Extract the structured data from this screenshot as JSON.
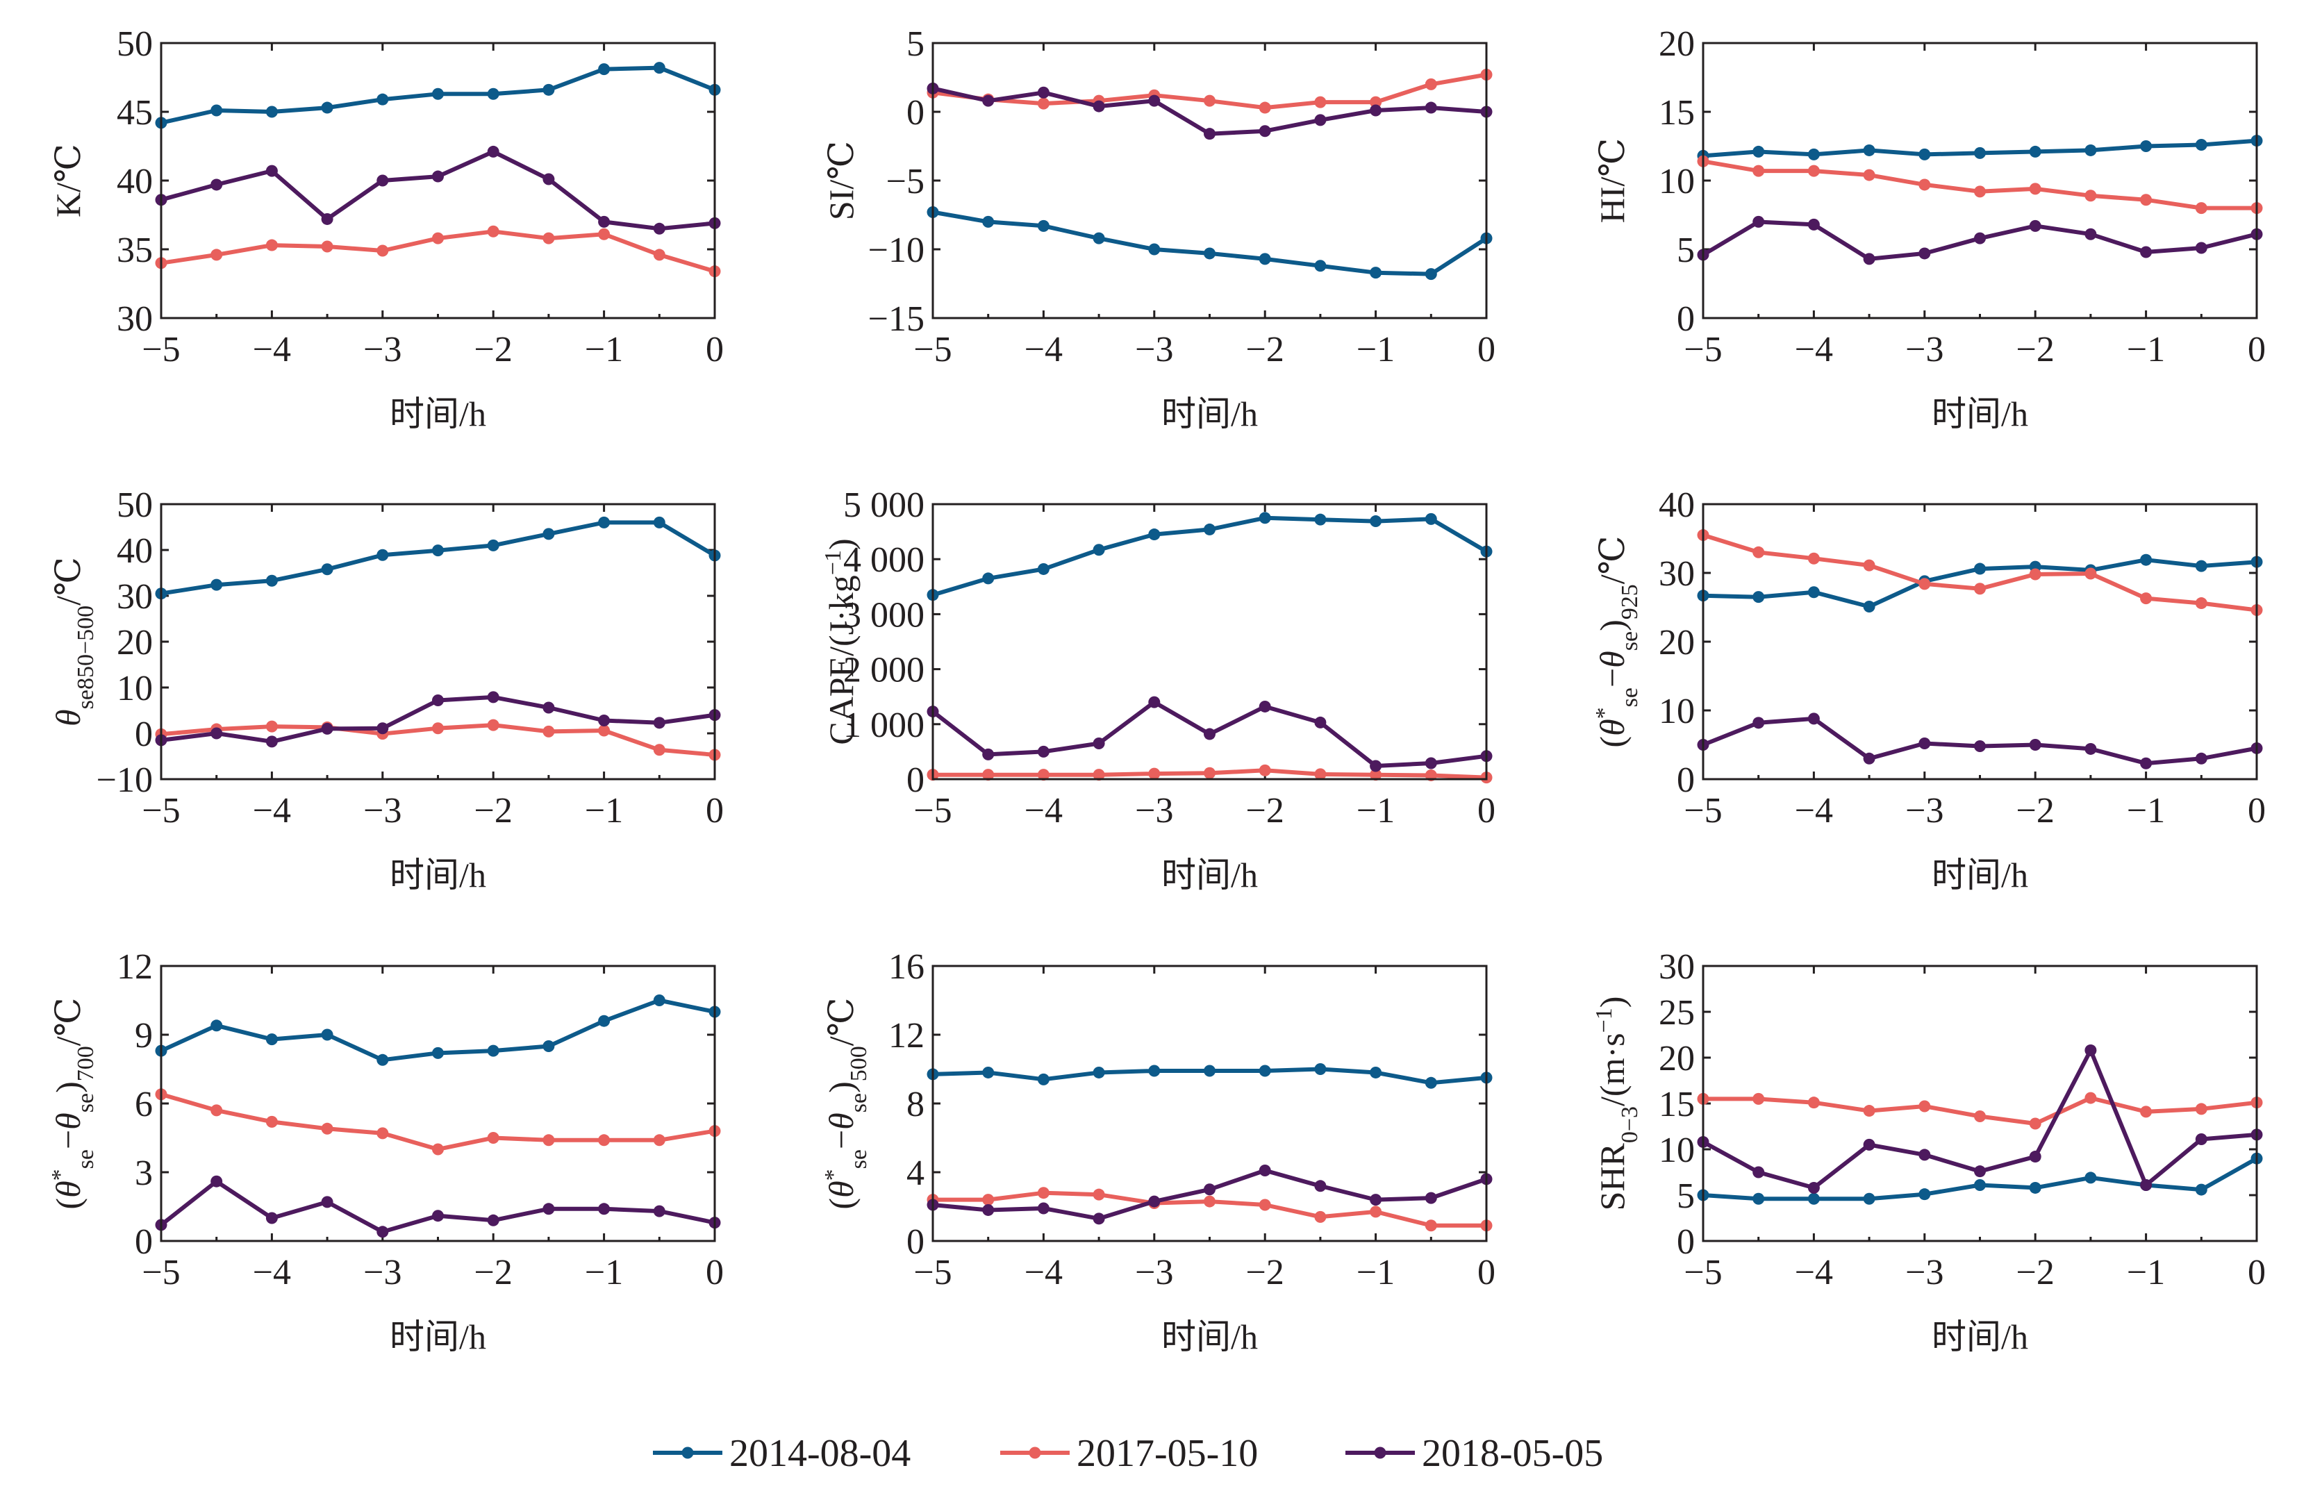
{
  "series_meta": [
    {
      "name": "2014-08-04",
      "color": "#0d5a8a"
    },
    {
      "name": "2017-05-10",
      "color": "#e8605c"
    },
    {
      "name": "2018-05-05",
      "color": "#4d1a5e"
    }
  ],
  "chart_data": [
    {
      "type": "line",
      "xlabel": "时间/h",
      "ylabel": "K/℃",
      "xlim": [
        -5,
        0
      ],
      "ylim": [
        30,
        50
      ],
      "xticks": [
        "−5",
        "−4",
        "−3",
        "−2",
        "−1",
        "0"
      ],
      "yticks": [
        "30",
        "35",
        "40",
        "45",
        "50"
      ],
      "x": [
        -5,
        -4.5,
        -4,
        -3.5,
        -3,
        -2.5,
        -2,
        -1.5,
        -1,
        -0.5,
        0
      ],
      "series": [
        {
          "name": "2014-08-04",
          "values": [
            44.2,
            45.1,
            45.0,
            45.3,
            45.9,
            46.3,
            46.3,
            46.6,
            48.1,
            48.2,
            46.6
          ]
        },
        {
          "name": "2017-05-10",
          "values": [
            34.0,
            34.6,
            35.3,
            35.2,
            34.9,
            35.8,
            36.3,
            35.8,
            36.1,
            34.6,
            33.4
          ]
        },
        {
          "name": "2018-05-05",
          "values": [
            38.6,
            39.7,
            40.7,
            37.2,
            40.0,
            40.3,
            42.1,
            40.1,
            37.0,
            36.5,
            36.9
          ]
        }
      ]
    },
    {
      "type": "line",
      "xlabel": "时间/h",
      "ylabel": "SI/℃",
      "xlim": [
        -5,
        0
      ],
      "ylim": [
        -15,
        5
      ],
      "xticks": [
        "−5",
        "−4",
        "−3",
        "−2",
        "−1",
        "0"
      ],
      "yticks": [
        "−15",
        "−10",
        "−5",
        "0",
        "5"
      ],
      "x": [
        -5,
        -4.5,
        -4,
        -3.5,
        -3,
        -2.5,
        -2,
        -1.5,
        -1,
        -0.5,
        0
      ],
      "series": [
        {
          "name": "2014-08-04",
          "values": [
            -7.3,
            -8.0,
            -8.3,
            -9.2,
            -10.0,
            -10.3,
            -10.7,
            -11.2,
            -11.7,
            -11.8,
            -9.2
          ]
        },
        {
          "name": "2017-05-10",
          "values": [
            1.4,
            0.9,
            0.6,
            0.8,
            1.2,
            0.8,
            0.3,
            0.7,
            0.7,
            2.0,
            2.7
          ]
        },
        {
          "name": "2018-05-05",
          "values": [
            1.7,
            0.8,
            1.4,
            0.4,
            0.8,
            -1.6,
            -1.4,
            -0.6,
            0.1,
            0.3,
            0.0
          ]
        }
      ]
    },
    {
      "type": "line",
      "xlabel": "时间/h",
      "ylabel": "HI/℃",
      "xlim": [
        -5,
        0
      ],
      "ylim": [
        0,
        20
      ],
      "xticks": [
        "−5",
        "−4",
        "−3",
        "−2",
        "−1",
        "0"
      ],
      "yticks": [
        "0",
        "5",
        "10",
        "15",
        "20"
      ],
      "x": [
        -5,
        -4.5,
        -4,
        -3.5,
        -3,
        -2.5,
        -2,
        -1.5,
        -1,
        -0.5,
        0
      ],
      "series": [
        {
          "name": "2014-08-04",
          "values": [
            11.8,
            12.1,
            11.9,
            12.2,
            11.9,
            12.0,
            12.1,
            12.2,
            12.5,
            12.6,
            12.9
          ]
        },
        {
          "name": "2017-05-10",
          "values": [
            11.4,
            10.7,
            10.7,
            10.4,
            9.7,
            9.2,
            9.4,
            8.9,
            8.6,
            8.0,
            8.0
          ]
        },
        {
          "name": "2018-05-05",
          "values": [
            4.6,
            7.0,
            6.8,
            4.3,
            4.7,
            5.8,
            6.7,
            6.1,
            4.8,
            5.1,
            6.1
          ]
        }
      ]
    },
    {
      "type": "line",
      "xlabel": "时间/h",
      "ylabel": "θse850−500/℃",
      "xlim": [
        -5,
        0
      ],
      "ylim": [
        -10,
        50
      ],
      "xticks": [
        "−5",
        "−4",
        "−3",
        "−2",
        "−1",
        "0"
      ],
      "yticks": [
        "−10",
        "0",
        "10",
        "20",
        "30",
        "40",
        "50"
      ],
      "x": [
        -5,
        -4.5,
        -4,
        -3.5,
        -3,
        -2.5,
        -2,
        -1.5,
        -1,
        -0.5,
        0
      ],
      "series": [
        {
          "name": "2014-08-04",
          "values": [
            30.5,
            32.4,
            33.3,
            35.8,
            38.9,
            39.9,
            41.0,
            43.5,
            46.0,
            46.0,
            38.8
          ]
        },
        {
          "name": "2017-05-10",
          "values": [
            -0.2,
            0.9,
            1.5,
            1.3,
            -0.1,
            1.1,
            1.8,
            0.4,
            0.6,
            -3.6,
            -4.7
          ]
        },
        {
          "name": "2018-05-05",
          "values": [
            -1.5,
            0.0,
            -1.8,
            1.0,
            1.1,
            7.2,
            7.9,
            5.6,
            2.8,
            2.3,
            4.0
          ]
        }
      ]
    },
    {
      "type": "line",
      "xlabel": "时间/h",
      "ylabel": "CAPE/(J·kg⁻¹)",
      "xlim": [
        -5,
        0
      ],
      "ylim": [
        0,
        5000
      ],
      "xticks": [
        "−5",
        "−4",
        "−3",
        "−2",
        "−1",
        "0"
      ],
      "yticks": [
        "0",
        "1 000",
        "2 000",
        "3 000",
        "4 000",
        "5 000"
      ],
      "x": [
        -5,
        -4.5,
        -4,
        -3.5,
        -3,
        -2.5,
        -2,
        -1.5,
        -1,
        -0.5,
        0
      ],
      "series": [
        {
          "name": "2014-08-04",
          "values": [
            3350,
            3650,
            3820,
            4170,
            4450,
            4540,
            4750,
            4720,
            4690,
            4730,
            4140
          ]
        },
        {
          "name": "2017-05-10",
          "values": [
            80,
            80,
            80,
            80,
            100,
            110,
            160,
            90,
            80,
            70,
            30
          ]
        },
        {
          "name": "2018-05-05",
          "values": [
            1230,
            450,
            500,
            650,
            1400,
            820,
            1320,
            1030,
            240,
            290,
            420
          ]
        }
      ]
    },
    {
      "type": "line",
      "xlabel": "时间/h",
      "ylabel": "(θ*se−θse)925/℃",
      "xlim": [
        -5,
        0
      ],
      "ylim": [
        0,
        40
      ],
      "xticks": [
        "−5",
        "−4",
        "−3",
        "−2",
        "−1",
        "0"
      ],
      "yticks": [
        "0",
        "10",
        "20",
        "30",
        "40"
      ],
      "x": [
        -5,
        -4.5,
        -4,
        -3.5,
        -3,
        -2.5,
        -2,
        -1.5,
        -1,
        -0.5,
        0
      ],
      "series": [
        {
          "name": "2014-08-04",
          "values": [
            26.7,
            26.5,
            27.2,
            25.1,
            28.8,
            30.6,
            30.9,
            30.4,
            31.9,
            31.0,
            31.6
          ]
        },
        {
          "name": "2017-05-10",
          "values": [
            35.5,
            33.0,
            32.1,
            31.1,
            28.4,
            27.7,
            29.8,
            29.9,
            26.3,
            25.6,
            24.6
          ]
        },
        {
          "name": "2018-05-05",
          "values": [
            5.0,
            8.2,
            8.8,
            3.0,
            5.2,
            4.8,
            5.0,
            4.4,
            2.3,
            3.0,
            4.5
          ]
        }
      ]
    },
    {
      "type": "line",
      "xlabel": "时间/h",
      "ylabel": "(θ*se−θse)700/℃",
      "xlim": [
        -5,
        0
      ],
      "ylim": [
        0,
        12
      ],
      "xticks": [
        "−5",
        "−4",
        "−3",
        "−2",
        "−1",
        "0"
      ],
      "yticks": [
        "0",
        "3",
        "6",
        "9",
        "12"
      ],
      "x": [
        -5,
        -4.5,
        -4,
        -3.5,
        -3,
        -2.5,
        -2,
        -1.5,
        -1,
        -0.5,
        0
      ],
      "series": [
        {
          "name": "2014-08-04",
          "values": [
            8.3,
            9.4,
            8.8,
            9.0,
            7.9,
            8.2,
            8.3,
            8.5,
            9.6,
            10.5,
            10.0
          ]
        },
        {
          "name": "2017-05-10",
          "values": [
            6.4,
            5.7,
            5.2,
            4.9,
            4.7,
            4.0,
            4.5,
            4.4,
            4.4,
            4.4,
            4.8
          ]
        },
        {
          "name": "2018-05-05",
          "values": [
            0.7,
            2.6,
            1.0,
            1.7,
            0.4,
            1.1,
            0.9,
            1.4,
            1.4,
            1.3,
            0.8
          ]
        }
      ]
    },
    {
      "type": "line",
      "xlabel": "时间/h",
      "ylabel": "(θ*se−θse)500/℃",
      "xlim": [
        -5,
        0
      ],
      "ylim": [
        0,
        16
      ],
      "xticks": [
        "−5",
        "−4",
        "−3",
        "−2",
        "−1",
        "0"
      ],
      "yticks": [
        "0",
        "4",
        "8",
        "12",
        "16"
      ],
      "x": [
        -5,
        -4.5,
        -4,
        -3.5,
        -3,
        -2.5,
        -2,
        -1.5,
        -1,
        -0.5,
        0
      ],
      "series": [
        {
          "name": "2014-08-04",
          "values": [
            9.7,
            9.8,
            9.4,
            9.8,
            9.9,
            9.9,
            9.9,
            10.0,
            9.8,
            9.2,
            9.5
          ]
        },
        {
          "name": "2017-05-10",
          "values": [
            2.4,
            2.4,
            2.8,
            2.7,
            2.2,
            2.3,
            2.1,
            1.4,
            1.7,
            0.9,
            0.9
          ]
        },
        {
          "name": "2018-05-05",
          "values": [
            2.1,
            1.8,
            1.9,
            1.3,
            2.3,
            3.0,
            4.1,
            3.2,
            2.4,
            2.5,
            3.6
          ]
        }
      ]
    },
    {
      "type": "line",
      "xlabel": "时间/h",
      "ylabel": "SHR0−3/(m·s⁻¹)",
      "xlim": [
        -5,
        0
      ],
      "ylim": [
        0,
        30
      ],
      "xticks": [
        "−5",
        "−4",
        "−3",
        "−2",
        "−1",
        "0"
      ],
      "yticks": [
        "0",
        "5",
        "10",
        "15",
        "20",
        "25",
        "30"
      ],
      "x": [
        -5,
        -4.5,
        -4,
        -3.5,
        -3,
        -2.5,
        -2,
        -1.5,
        -1,
        -0.5,
        0
      ],
      "series": [
        {
          "name": "2014-08-04",
          "values": [
            5.0,
            4.6,
            4.6,
            4.6,
            5.1,
            6.1,
            5.8,
            6.9,
            6.1,
            5.6,
            9.0
          ]
        },
        {
          "name": "2017-05-10",
          "values": [
            15.5,
            15.5,
            15.1,
            14.2,
            14.7,
            13.6,
            12.8,
            15.6,
            14.1,
            14.4,
            15.1
          ]
        },
        {
          "name": "2018-05-05",
          "values": [
            10.8,
            7.5,
            5.8,
            10.5,
            9.4,
            7.6,
            9.2,
            20.8,
            6.1,
            11.1,
            11.6
          ]
        }
      ]
    }
  ]
}
